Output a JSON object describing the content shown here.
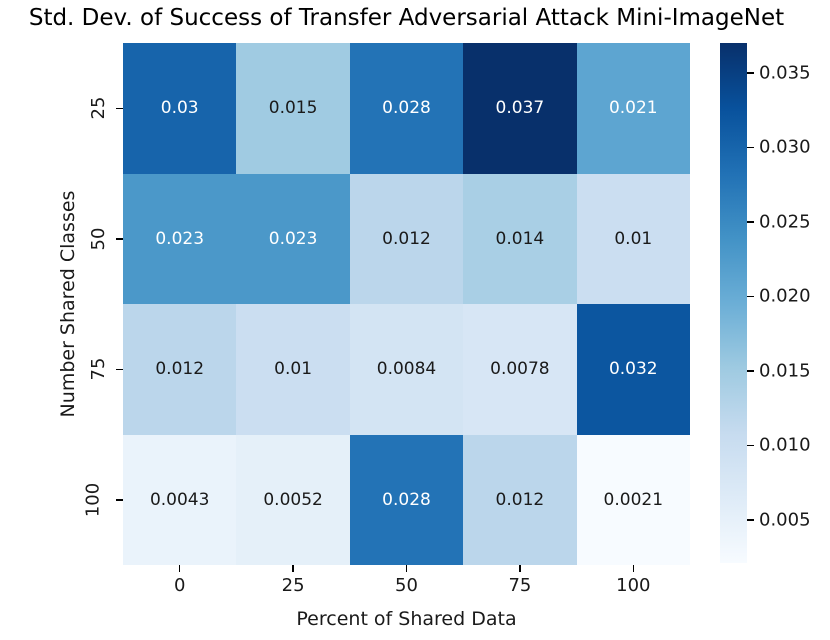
{
  "chart_data": {
    "type": "heatmap",
    "title": "Std. Dev. of Success of Transfer Adversarial Attack Mini-ImageNet",
    "xlabel": "Percent of Shared Data",
    "ylabel": "Number Shared Classes",
    "x_categories": [
      "0",
      "25",
      "50",
      "75",
      "100"
    ],
    "y_categories": [
      "25",
      "50",
      "75",
      "100"
    ],
    "values": [
      [
        0.03,
        0.015,
        0.028,
        0.037,
        0.021
      ],
      [
        0.023,
        0.023,
        0.012,
        0.014,
        0.01
      ],
      [
        0.012,
        0.01,
        0.0084,
        0.0078,
        0.032
      ],
      [
        0.0043,
        0.0052,
        0.028,
        0.012,
        0.0021
      ]
    ],
    "annotations": [
      [
        "0.03",
        "0.015",
        "0.028",
        "0.037",
        "0.021"
      ],
      [
        "0.023",
        "0.023",
        "0.012",
        "0.014",
        "0.01"
      ],
      [
        "0.012",
        "0.01",
        "0.0084",
        "0.0078",
        "0.032"
      ],
      [
        "0.0043",
        "0.0052",
        "0.028",
        "0.012",
        "0.0021"
      ]
    ],
    "cell_colors": [
      [
        "#1764ab",
        "#a0cbe2",
        "#2373b6",
        "#08306b",
        "#5da5d1"
      ],
      [
        "#4b98c9",
        "#4b98c9",
        "#bbd6eb",
        "#a9cfe5",
        "#cbdef1"
      ],
      [
        "#bbd6eb",
        "#cbdef1",
        "#d3e4f3",
        "#d7e6f5",
        "#0c56a0"
      ],
      [
        "#eaf3fb",
        "#e5f0f9",
        "#2373b6",
        "#bbd6eb",
        "#f7fbff"
      ]
    ],
    "cell_text_colors": [
      [
        "#ffffff",
        "#1a1a1a",
        "#ffffff",
        "#ffffff",
        "#ffffff"
      ],
      [
        "#ffffff",
        "#ffffff",
        "#1a1a1a",
        "#1a1a1a",
        "#1a1a1a"
      ],
      [
        "#1a1a1a",
        "#1a1a1a",
        "#1a1a1a",
        "#1a1a1a",
        "#ffffff"
      ],
      [
        "#1a1a1a",
        "#1a1a1a",
        "#ffffff",
        "#1a1a1a",
        "#1a1a1a"
      ]
    ],
    "colormap": "Blues",
    "colormap_stops": [
      "#f7fbff",
      "#deebf7",
      "#c6dbef",
      "#9ecae1",
      "#6baed6",
      "#4292c6",
      "#2171b5",
      "#08519c",
      "#08306b"
    ],
    "colorbar": {
      "vmin": 0.0021,
      "vmax": 0.037,
      "tick_labels": [
        "0.035",
        "0.030",
        "0.025",
        "0.020",
        "0.015",
        "0.010",
        "0.005"
      ],
      "tick_values": [
        0.035,
        0.03,
        0.025,
        0.02,
        0.015,
        0.01,
        0.005
      ],
      "position": "right"
    },
    "grid": false,
    "legend": false
  }
}
